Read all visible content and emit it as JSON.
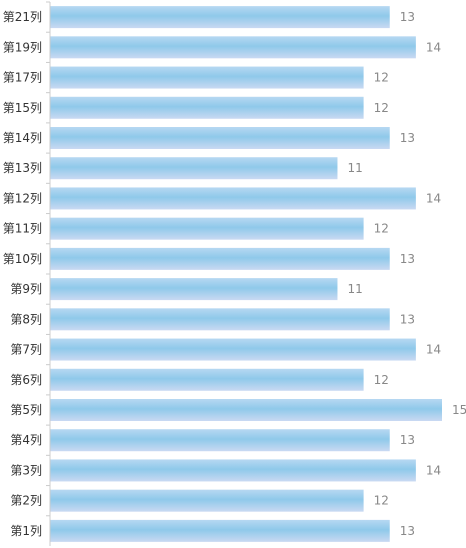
{
  "chart_data": {
    "type": "bar",
    "orientation": "horizontal",
    "categories": [
      "第21列",
      "第19列",
      "第17列",
      "第15列",
      "第14列",
      "第13列",
      "第12列",
      "第11列",
      "第10列",
      "第9列",
      "第8列",
      "第7列",
      "第6列",
      "第5列",
      "第4列",
      "第3列",
      "第2列",
      "第1列"
    ],
    "values": [
      13,
      14,
      12,
      12,
      13,
      11,
      14,
      12,
      13,
      11,
      13,
      14,
      12,
      15,
      13,
      14,
      12,
      13
    ],
    "xlim": [
      0,
      15
    ],
    "grid": false,
    "legend": "none",
    "bar_color_top": "#8fc9ea",
    "bar_color_bottom": "#b9d6f0",
    "axis_color": "#cccccc",
    "value_label_color": "#888888",
    "category_label_color": "#333333"
  }
}
